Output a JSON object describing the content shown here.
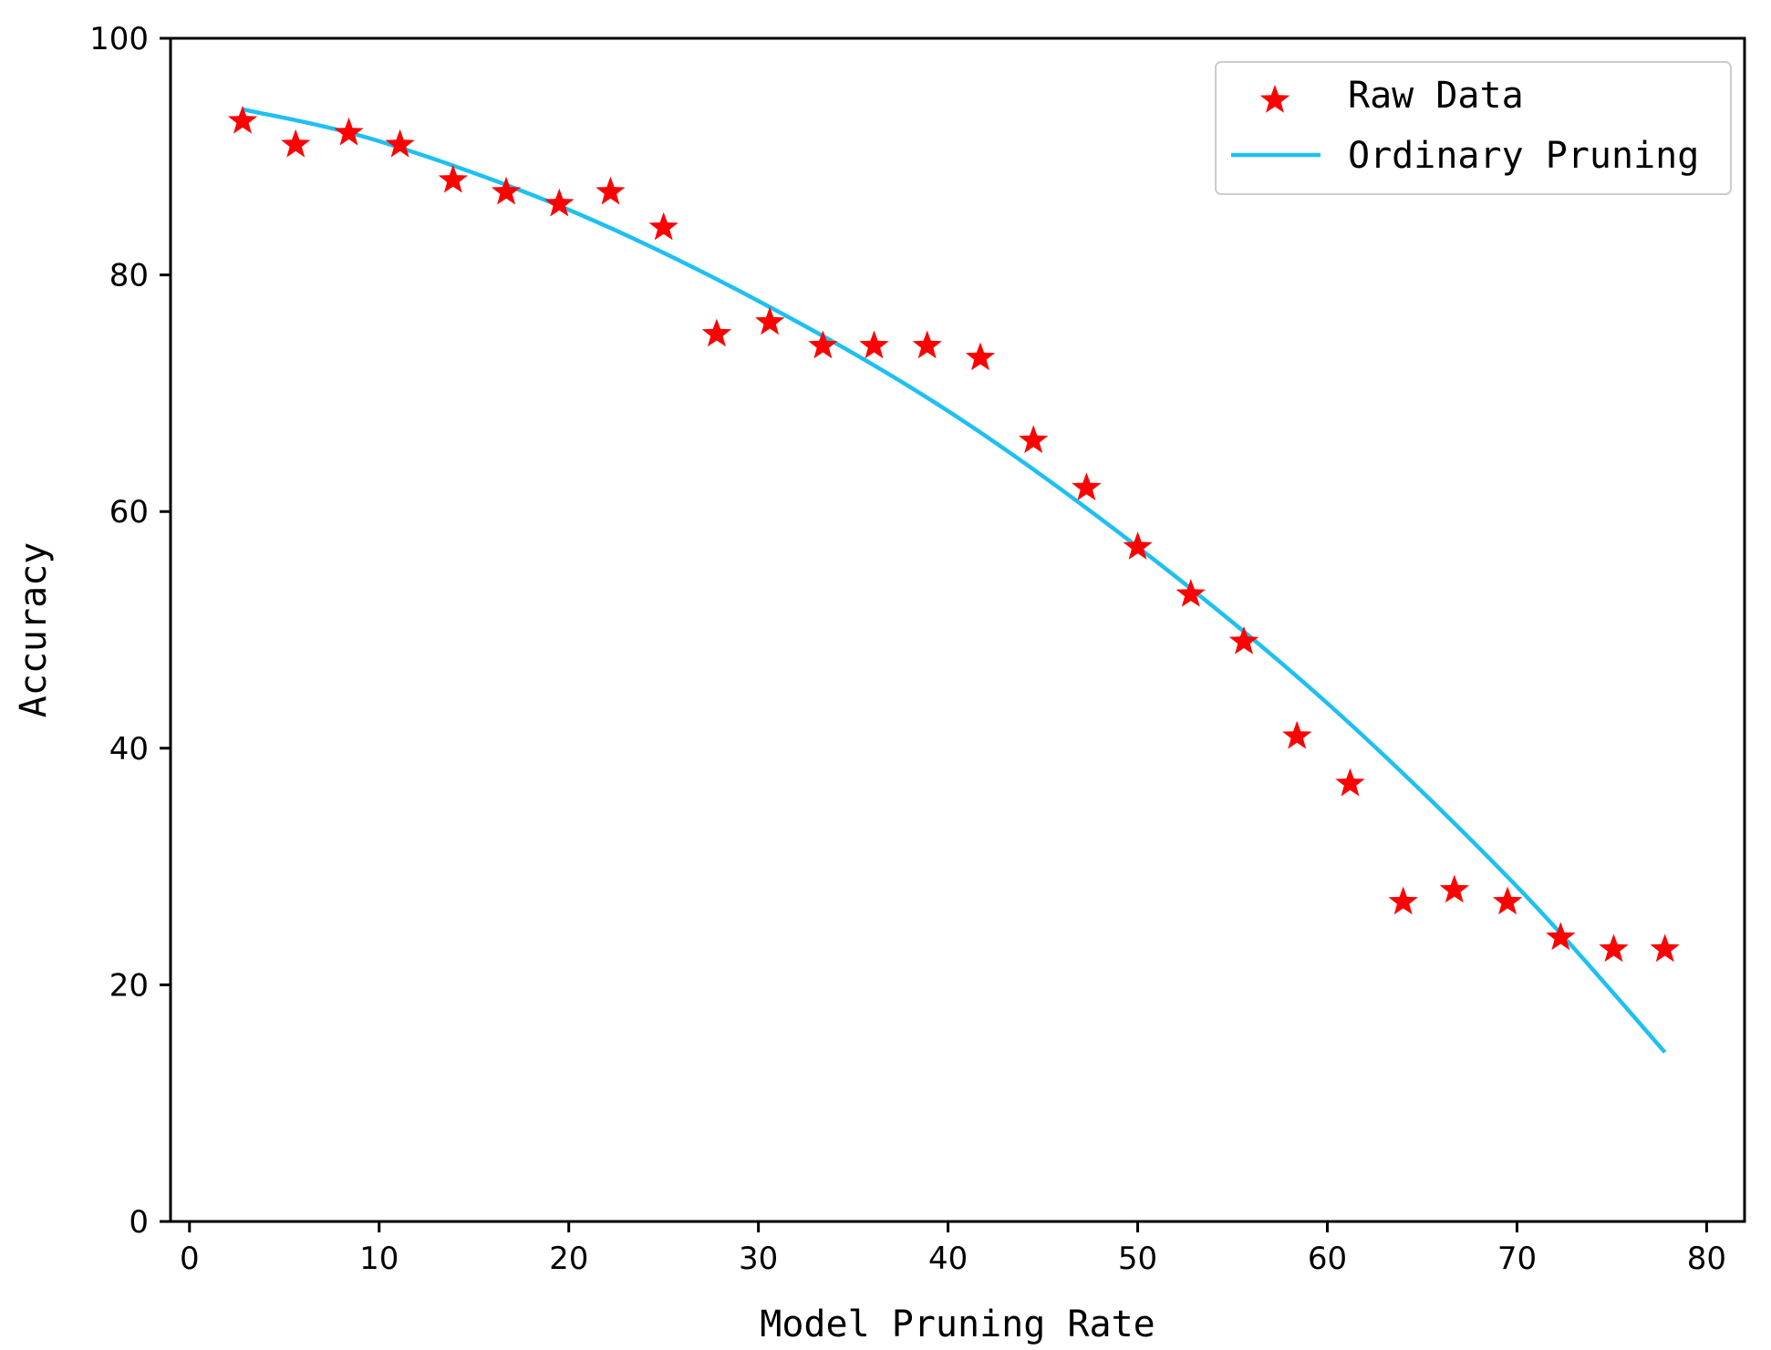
{
  "chart_data": {
    "type": "scatter",
    "title": "",
    "xlabel": "Model Pruning Rate",
    "ylabel": "Accuracy",
    "xlim": [
      -1,
      82
    ],
    "ylim": [
      0,
      100
    ],
    "xticks": [
      0,
      10,
      20,
      30,
      40,
      50,
      60,
      70,
      80
    ],
    "yticks": [
      0,
      20,
      40,
      60,
      80,
      100
    ],
    "grid": false,
    "legend_position": "top-right",
    "series": [
      {
        "name": "Raw Data",
        "kind": "scatter",
        "marker": "star",
        "color": "#ff0000",
        "x": [
          2.8,
          5.6,
          8.4,
          11.1,
          13.9,
          16.7,
          19.5,
          22.2,
          25.0,
          27.8,
          30.6,
          33.4,
          36.1,
          38.9,
          41.7,
          44.5,
          47.3,
          50.0,
          52.8,
          55.6,
          58.4,
          61.2,
          64.0,
          66.7,
          69.5,
          72.3,
          75.1,
          77.8
        ],
        "y": [
          93,
          91,
          92,
          91,
          88,
          87,
          86,
          87,
          84,
          75,
          76,
          74,
          74,
          74,
          73,
          66,
          62,
          57,
          53,
          49,
          41,
          37,
          27,
          28,
          27,
          24,
          23,
          23
        ]
      },
      {
        "name": "Ordinary Pruning",
        "kind": "line",
        "color": "#1ec0f2",
        "x": [
          2.8,
          10,
          20,
          30,
          40,
          50,
          60,
          70,
          77.8
        ],
        "y": [
          94,
          91.3,
          85.5,
          77.8,
          68.5,
          57,
          43.8,
          28.3,
          14.3
        ]
      }
    ]
  }
}
